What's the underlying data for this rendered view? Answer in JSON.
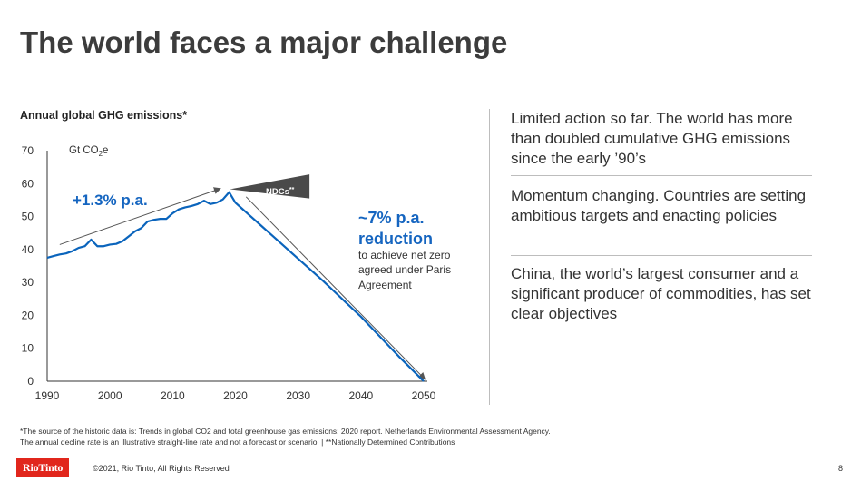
{
  "slide": {
    "title": "The world faces a major challenge"
  },
  "chart_data": {
    "type": "line",
    "title": "Annual global GHG emissions*",
    "ylabel_main": "Gt CO",
    "ylabel_sub": "2",
    "ylabel_end": "e",
    "xlim": [
      1990,
      2050
    ],
    "ylim": [
      0,
      70
    ],
    "xticks": [
      1990,
      2000,
      2010,
      2020,
      2030,
      2040,
      2050
    ],
    "yticks": [
      0,
      10,
      20,
      30,
      40,
      50,
      60,
      70
    ],
    "series": [
      {
        "x": [
          1990,
          1991,
          1992,
          1993,
          1994,
          1995,
          1996,
          1997,
          1998,
          1999,
          2000,
          2001,
          2002,
          2003,
          2004,
          2005,
          2006,
          2007,
          2008,
          2009,
          2010,
          2011,
          2012,
          2013,
          2014,
          2015,
          2016,
          2017,
          2018,
          2019,
          2020,
          2021,
          2022,
          2024,
          2026,
          2028,
          2030,
          2032,
          2034,
          2036,
          2038,
          2040,
          2042,
          2044,
          2046,
          2048,
          2050
        ],
        "y": [
          37.5,
          38,
          38.5,
          38.8,
          39.5,
          40.5,
          41,
          43,
          41,
          41,
          41.5,
          41.7,
          42.5,
          44,
          45.5,
          46.5,
          48.5,
          49,
          49.3,
          49.3,
          51,
          52.2,
          52.8,
          53.2,
          53.8,
          54.8,
          53.8,
          54.2,
          55.2,
          57.4,
          54.2,
          52.5,
          50.8,
          47.4,
          44,
          40.6,
          37.2,
          33.8,
          30.4,
          26.8,
          23.2,
          19.6,
          15.6,
          11.6,
          7.6,
          3.8,
          0
        ]
      }
    ],
    "annotations": {
      "growth": "+1.3% p.a.",
      "ndc": "NDCs",
      "ndc_sup": "**",
      "reduction_line1": "~7% p.a.",
      "reduction_line2": "reduction",
      "note_line1": "to achieve net zero",
      "note_line2": "agreed under Paris",
      "note_line3": "Agreement"
    },
    "colors": {
      "line": "#0a64bc",
      "accent_text": "#1565c0",
      "ndc_fill": "#4a4a4a",
      "arrow": "#555555"
    }
  },
  "sidebar": {
    "points": [
      "Limited action so far. The world has more than doubled cumulative GHG emissions since the early ’90’s",
      "Momentum changing. Countries are setting ambitious targets and enacting policies",
      "China, the world’s largest consumer and a significant producer of commodities, has set clear objectives"
    ]
  },
  "footer": {
    "note1": "*The source of the historic data is: Trends in global CO2 and total greenhouse gas emissions: 2020 report. Netherlands Environmental Assessment Agency.",
    "note2": "The annual decline rate is an illustrative straight-line rate and not a forecast or scenario. | **Nationally Determined Contributions",
    "logo": "RioTinto",
    "copyright": "©2021, Rio Tinto, All Rights Reserved",
    "page": "8"
  }
}
